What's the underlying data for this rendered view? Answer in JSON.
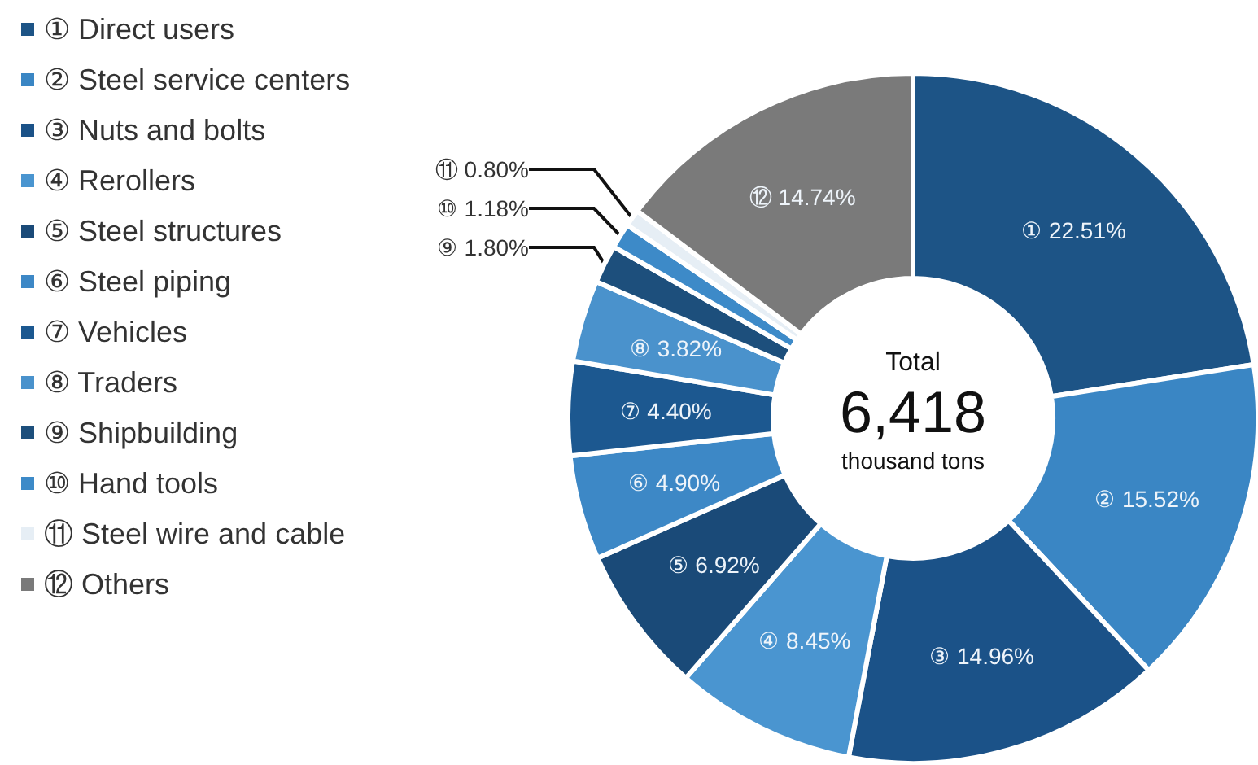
{
  "chart_data": {
    "type": "donut",
    "categories": [
      "① Direct users",
      "② Steel service centers",
      "③ Nuts and bolts",
      "④ Rerollers",
      "⑤ Steel structures",
      "⑥ Steel piping",
      "⑦ Vehicles",
      "⑧ Traders",
      "⑨ Shipbuilding",
      "⑩ Hand tools",
      "⑪ Steel wire and cable",
      "⑫ Others"
    ],
    "values": [
      22.51,
      15.52,
      14.96,
      8.45,
      6.92,
      4.9,
      4.4,
      3.82,
      1.8,
      1.18,
      0.8,
      14.74
    ],
    "value_labels": [
      "① 22.51%",
      "② 15.52%",
      "③ 14.96%",
      "④ 8.45%",
      "⑤ 6.92%",
      "⑥ 4.90%",
      "⑦ 4.40%",
      "⑧ 3.82%",
      "⑨ 1.80%",
      "⑩ 1.18%",
      "⑪ 0.80%",
      "⑫ 14.74%"
    ],
    "colors": [
      "#1d5486",
      "#3a86c4",
      "#1b5288",
      "#4a95d0",
      "#1a4a78",
      "#3d88c6",
      "#1c5890",
      "#4a92cc",
      "#1d4f7c",
      "#3d8ac8",
      "#e6eef5",
      "#7a7a7a"
    ],
    "annotations": [
      "Total",
      "6,418",
      "thousand tons"
    ],
    "legend": "left"
  }
}
